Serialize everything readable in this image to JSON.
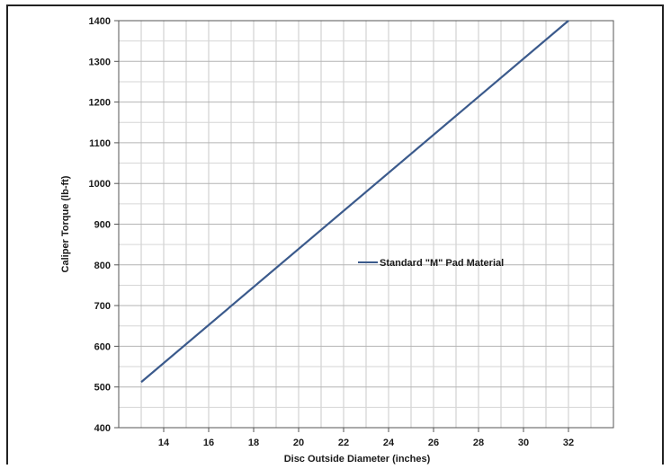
{
  "chart_data": {
    "type": "line",
    "xlabel": "Disc Outside Diameter (inches)",
    "ylabel": "Caliper Torque (lb-ft)",
    "xlim": [
      12,
      34
    ],
    "ylim": [
      400,
      1400
    ],
    "x_ticks": [
      14,
      16,
      18,
      20,
      22,
      24,
      26,
      28,
      30,
      32
    ],
    "y_ticks": [
      400,
      500,
      600,
      700,
      800,
      900,
      1000,
      1100,
      1200,
      1300,
      1400
    ],
    "grid": true,
    "legend_position": "center-right",
    "series": [
      {
        "name": "Standard \"M\" Pad Material",
        "color": "#3b5a8c",
        "x": [
          13,
          32
        ],
        "y": [
          512,
          1400
        ]
      }
    ]
  }
}
